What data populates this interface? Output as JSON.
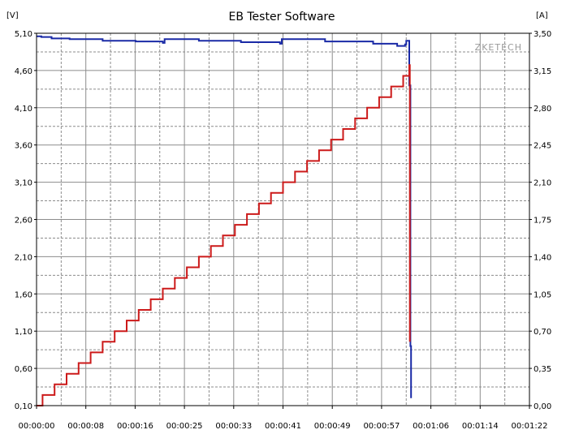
{
  "chart_data": {
    "type": "line",
    "title": "EB Tester Software",
    "watermark": "ZKETECH",
    "y_left_unit": "[V]",
    "y_right_unit": "[A]",
    "y_left_lim": [
      0.1,
      5.1
    ],
    "y_right_lim": [
      0.0,
      3.5
    ],
    "x_lim_seconds": [
      0,
      82
    ],
    "y_left_ticks": [
      "5,10",
      "4,60",
      "4,10",
      "3,60",
      "3,10",
      "2,60",
      "2,10",
      "1,60",
      "1,10",
      "0,60",
      "0,10"
    ],
    "y_right_ticks": [
      "3,50",
      "3,15",
      "2,80",
      "2,45",
      "2,10",
      "1,75",
      "1,40",
      "1,05",
      "0,70",
      "0,35",
      "0,00"
    ],
    "x_ticks": [
      "00:00:00",
      "00:00:08",
      "00:00:16",
      "00:00:25",
      "00:00:33",
      "00:00:41",
      "00:00:49",
      "00:00:57",
      "00:01:06",
      "00:01:14",
      "00:01:22"
    ],
    "grid": true,
    "colors": {
      "voltage": "#1a2aa6",
      "current": "#cc1a1a",
      "grid": "#8c8c8c",
      "axis": "#000000"
    },
    "series": [
      {
        "axis": "left",
        "color": "#1a2aa6",
        "x": [
          0,
          0.8,
          2.5,
          5.5,
          11,
          16.5,
          21,
          21.3,
          27,
          34,
          40.5,
          40.8,
          48,
          56,
          60,
          61.3,
          61.5,
          62,
          62.2,
          62.3
        ],
        "y": [
          5.06,
          5.05,
          5.03,
          5.02,
          5.0,
          4.99,
          4.97,
          5.02,
          5.0,
          4.98,
          4.96,
          5.02,
          4.99,
          4.96,
          4.93,
          4.95,
          5.0,
          4.4,
          0.9,
          0.2
        ]
      },
      {
        "axis": "right",
        "color": "#cc1a1a",
        "x": [
          0,
          1,
          3,
          5,
          7,
          9,
          11,
          13,
          15,
          17,
          19,
          21,
          23,
          25,
          27,
          29,
          31,
          33,
          35,
          37,
          39,
          41,
          43,
          45,
          47,
          49,
          51,
          53,
          55,
          57,
          59,
          61,
          62,
          62.1
        ],
        "y": [
          0.0,
          0.1,
          0.2,
          0.3,
          0.4,
          0.5,
          0.6,
          0.7,
          0.8,
          0.9,
          1.0,
          1.1,
          1.2,
          1.3,
          1.4,
          1.5,
          1.6,
          1.7,
          1.8,
          1.9,
          2.0,
          2.1,
          2.2,
          2.3,
          2.4,
          2.5,
          2.6,
          2.7,
          2.8,
          2.9,
          3.0,
          3.1,
          3.2,
          0.6
        ]
      }
    ]
  }
}
